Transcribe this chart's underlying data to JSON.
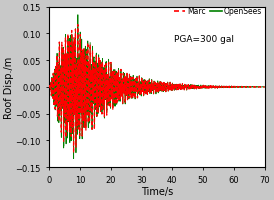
{
  "title": "",
  "xlabel": "Time/s",
  "ylabel": "Roof Disp./m",
  "xlim": [
    0,
    70
  ],
  "ylim": [
    -0.15,
    0.15
  ],
  "xticks": [
    0,
    10,
    20,
    30,
    40,
    50,
    60,
    70
  ],
  "yticks": [
    -0.15,
    -0.1,
    -0.05,
    0,
    0.05,
    0.1,
    0.15
  ],
  "legend_marc": "Marc",
  "legend_opensees": "OpenSees",
  "annotation": "PGA=300 gal",
  "marc_color": "#ff0000",
  "opensees_color": "#008000",
  "background_color": "#c8c8c8",
  "plot_bg_color": "#ffffff",
  "peak_time": 8.0,
  "decay_rate": 0.09,
  "ramp_duration": 3.0,
  "max_amp": 0.135,
  "freq_main": 2.5,
  "freq2": 4.0,
  "freq3": 1.2
}
